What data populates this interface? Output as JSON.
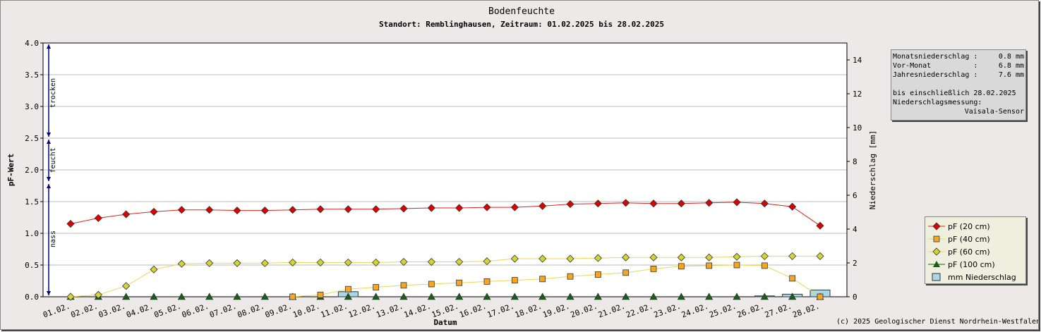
{
  "chart_data": {
    "type": "line",
    "title": "Bodenfeuchte",
    "subtitle": "Standort: Remblinghausen, Zeitraum: 01.02.2025 bis 28.02.2025",
    "xlabel": "Datum",
    "ylabel": "pF-Wert",
    "y2label": "Niederschlag [mm]",
    "ylim": [
      0,
      4
    ],
    "y2lim": [
      0,
      15
    ],
    "yticks": [
      "0.0",
      "0.5",
      "1.0",
      "1.5",
      "2.0",
      "2.5",
      "3.0",
      "3.5",
      "4.0"
    ],
    "y2ticks": [
      "0",
      "2",
      "4",
      "6",
      "8",
      "10",
      "12",
      "14"
    ],
    "categories": [
      "01.02.",
      "02.02.",
      "03.02.",
      "04.02.",
      "05.02.",
      "06.02.",
      "07.02.",
      "08.02.",
      "09.02.",
      "10.02.",
      "11.02.",
      "12.02.",
      "13.02.",
      "14.02.",
      "15.02.",
      "16.02.",
      "17.02.",
      "18.02.",
      "19.02.",
      "20.02.",
      "21.02.",
      "22.02.",
      "23.02.",
      "24.02.",
      "25.02.",
      "26.02.",
      "27.02.",
      "28.02."
    ],
    "zones": [
      {
        "label": "trocken",
        "from": 2.5,
        "to": 4.0
      },
      {
        "label": "feucht",
        "from": 1.8,
        "to": 2.5
      },
      {
        "label": "nass",
        "from": 0.0,
        "to": 1.8
      }
    ],
    "series": [
      {
        "name": "pF (20 cm)",
        "color": "#dd0000",
        "line_color": "#dd2222",
        "marker": "diamond",
        "values": [
          1.15,
          1.24,
          1.3,
          1.34,
          1.37,
          1.37,
          1.36,
          1.36,
          1.37,
          1.38,
          1.38,
          1.38,
          1.39,
          1.4,
          1.4,
          1.41,
          1.41,
          1.43,
          1.46,
          1.47,
          1.48,
          1.47,
          1.47,
          1.48,
          1.49,
          1.47,
          1.42,
          1.12
        ]
      },
      {
        "name": "pF (40 cm)",
        "color": "#f5a623",
        "line_color": "#e8d85a",
        "marker": "square",
        "values": [
          null,
          null,
          null,
          null,
          null,
          null,
          null,
          null,
          0.0,
          0.03,
          0.12,
          0.15,
          0.18,
          0.2,
          0.22,
          0.24,
          0.26,
          0.28,
          0.32,
          0.35,
          0.38,
          0.44,
          0.48,
          0.49,
          0.5,
          0.49,
          0.29,
          0.0
        ]
      },
      {
        "name": "pF (60 cm)",
        "color": "#d4d432",
        "line_color": "#e8d85a",
        "marker": "diamond",
        "values": [
          0.0,
          0.03,
          0.17,
          0.43,
          0.52,
          0.53,
          0.53,
          0.53,
          0.54,
          0.54,
          0.54,
          0.54,
          0.55,
          0.55,
          0.55,
          0.56,
          0.6,
          0.6,
          0.6,
          0.61,
          0.62,
          0.62,
          0.62,
          0.62,
          0.63,
          0.64,
          0.64,
          0.64
        ]
      },
      {
        "name": "pF (100 cm)",
        "color": "#1a5e1a",
        "line_color": "#1a5e1a",
        "marker": "triangle",
        "values": [
          0,
          0,
          0,
          0,
          0,
          0,
          0,
          0,
          0,
          0,
          0,
          0,
          0,
          0,
          0,
          0,
          0,
          0,
          0,
          0,
          0,
          0,
          0,
          0,
          0,
          0,
          0,
          0
        ]
      },
      {
        "name": "mm  Niederschlag",
        "color": "#a8d8e8",
        "marker": "bar",
        "values": [
          0,
          0,
          0,
          0,
          0,
          0,
          0,
          0,
          0,
          0,
          0.3,
          0,
          0,
          0,
          0,
          0,
          0,
          0,
          0,
          0,
          0,
          0,
          0,
          0,
          0,
          0.05,
          0.15,
          0.4
        ]
      }
    ],
    "legend_position": "right",
    "grid": true
  },
  "info_box": {
    "rows": [
      {
        "label": "Monatsniederschlag :",
        "value": "0.8 mm"
      },
      {
        "label": "Vor-Monat          :",
        "value": "6.8 mm"
      },
      {
        "label": "Jahresniederschlag :",
        "value": "7.6 mm"
      }
    ],
    "until": "bis einschließlich 28.02.2025",
    "measurement_label": "Niederschlagsmessung:",
    "sensor": "Vaisala-Sensor"
  },
  "copyright": "(c) 2025 Geologischer Dienst Nordrhein-Westfalen"
}
